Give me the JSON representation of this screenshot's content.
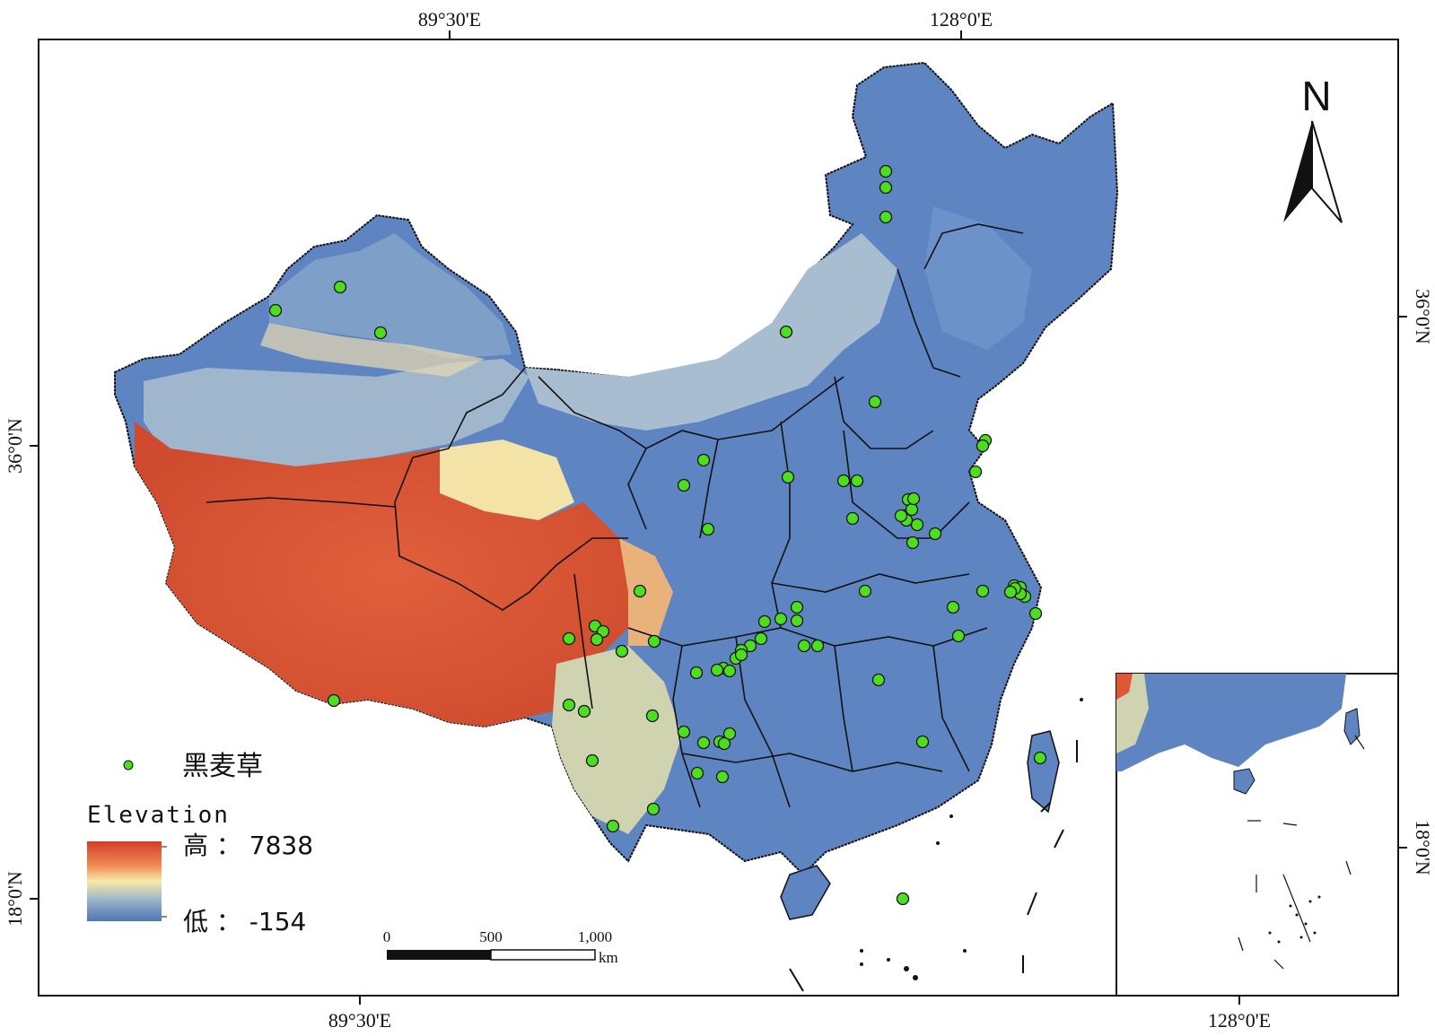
{
  "map": {
    "graticule": {
      "top_labels": [
        "89°30'E",
        "128°0'E"
      ],
      "bottom_labels": [
        "89°30'E",
        "128°0'E"
      ],
      "left_labels": [
        "36°0'N",
        "18°0'N"
      ],
      "right_labels": [
        "36°0'N",
        "18°0'N"
      ]
    },
    "north_arrow": {
      "label": "N"
    },
    "legend": {
      "species_label": "黑麦草",
      "point_color": "#4dde1f",
      "elevation_title": "Elevation",
      "high_label": "高 ： 7838",
      "low_label": "低 ： -154",
      "ramp_colors": [
        "#d43d2c",
        "#ef8a52",
        "#f8e9a8",
        "#9fb8c8",
        "#4d74b6"
      ]
    },
    "scale_bar": {
      "labels": [
        "0",
        "500",
        "1,000"
      ],
      "unit": "km"
    },
    "colors": {
      "lowland": "#5b82c0",
      "plateau": "#de5838",
      "basin": "#a9bfd0",
      "boundary": "#111111"
    }
  }
}
